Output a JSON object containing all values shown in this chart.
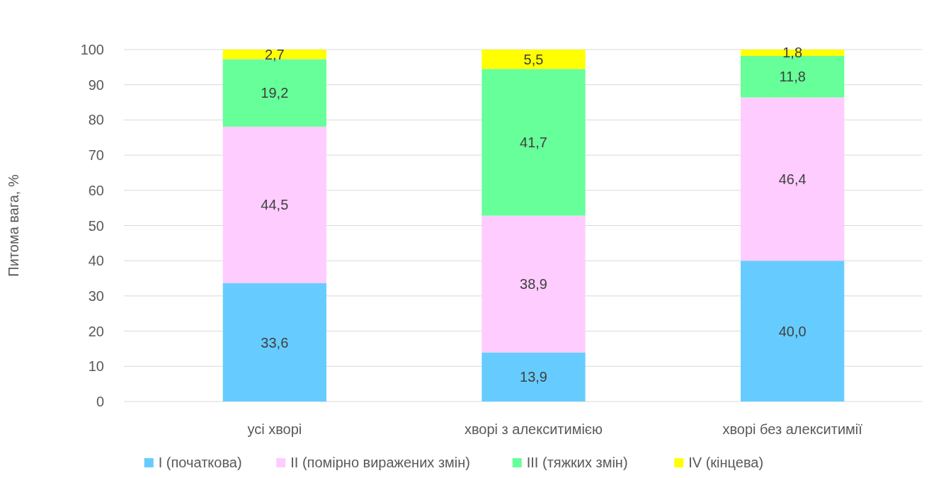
{
  "chart_data": {
    "type": "bar",
    "stacked": true,
    "ylabel": "Питома вага, %",
    "categories": [
      "усі хворі",
      "хворі з алекситимією",
      "хворі без алекситимії"
    ],
    "series": [
      {
        "name": "I (початкова)",
        "color": "#66ccff",
        "values": [
          33.6,
          13.9,
          40.0
        ],
        "value_labels": [
          "33,6",
          "13,9",
          "40,0"
        ]
      },
      {
        "name": "II (помірно виражених змін)",
        "color": "#ffccff",
        "values": [
          44.5,
          38.9,
          46.4
        ],
        "value_labels": [
          "44,5",
          "38,9",
          "46,4"
        ]
      },
      {
        "name": "III (тяжких змін)",
        "color": "#66ff99",
        "values": [
          19.2,
          41.7,
          11.8
        ],
        "value_labels": [
          "19,2",
          "41,7",
          "11,8"
        ]
      },
      {
        "name": "IV (кінцева)",
        "color": "#ffff00",
        "values": [
          2.7,
          5.5,
          1.8
        ],
        "value_labels": [
          "2,7",
          "5,5",
          "1,8"
        ]
      }
    ],
    "ylim": [
      0,
      100
    ],
    "yticks": [
      0,
      10,
      20,
      30,
      40,
      50,
      60,
      70,
      80,
      90,
      100
    ],
    "grid": "y",
    "legend": "bottom"
  }
}
